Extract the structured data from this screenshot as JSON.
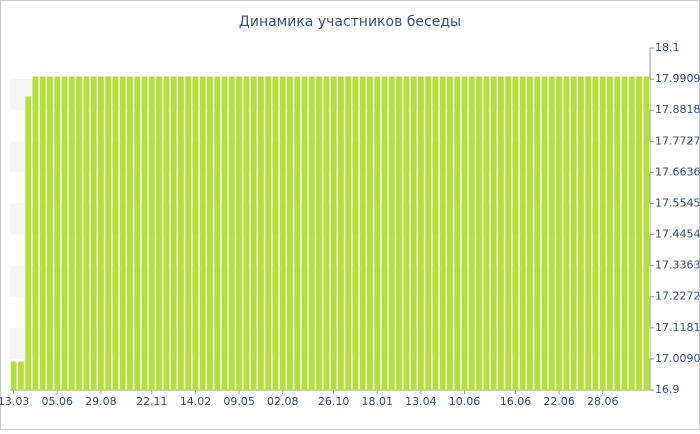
{
  "chart_data": {
    "type": "bar",
    "title": "Динамика участников беседы",
    "categories": [
      "13.03",
      null,
      null,
      null,
      null,
      null,
      "05.06",
      null,
      null,
      null,
      null,
      null,
      "29.08",
      null,
      null,
      null,
      null,
      null,
      null,
      "22.11",
      null,
      null,
      null,
      null,
      null,
      "14.02",
      null,
      null,
      null,
      null,
      null,
      "09.05",
      null,
      null,
      null,
      null,
      null,
      "02.08",
      null,
      null,
      null,
      null,
      null,
      null,
      "26.10",
      null,
      null,
      null,
      null,
      null,
      "18.01",
      null,
      null,
      null,
      null,
      null,
      "13.04",
      null,
      null,
      null,
      null,
      null,
      "10.06",
      null,
      null,
      null,
      null,
      null,
      null,
      "16.06",
      null,
      null,
      null,
      null,
      null,
      "22.06",
      null,
      null,
      null,
      null,
      null,
      "28.06",
      null,
      null,
      null,
      null,
      null,
      null
    ],
    "values": [
      17,
      17,
      17.93,
      18,
      18,
      18,
      18,
      18,
      18,
      18,
      18,
      18,
      18,
      18,
      18,
      18,
      18,
      18,
      18,
      18,
      18,
      18,
      18,
      18,
      18,
      18,
      18,
      18,
      18,
      18,
      18,
      18,
      18,
      18,
      18,
      18,
      18,
      18,
      18,
      18,
      18,
      18,
      18,
      18,
      18,
      18,
      18,
      18,
      18,
      18,
      18,
      18,
      18,
      18,
      18,
      18,
      18,
      18,
      18,
      18,
      18,
      18,
      18,
      18,
      18,
      18,
      18,
      18,
      18,
      18,
      18,
      18,
      18,
      18,
      18,
      18,
      18,
      18,
      18,
      18,
      18,
      18,
      18,
      18,
      18,
      18,
      18,
      18
    ],
    "color": "#b5e03a",
    "ylim": [
      16.9,
      18.1
    ],
    "yticks": [
      16.9,
      {
        "value": 17.009,
        "label": "17.0090"
      },
      17.1181,
      17.2272,
      17.3363,
      17.4454,
      17.5545,
      17.6636,
      17.7727,
      17.8818,
      17.9909,
      18.1
    ],
    "grid": true
  }
}
